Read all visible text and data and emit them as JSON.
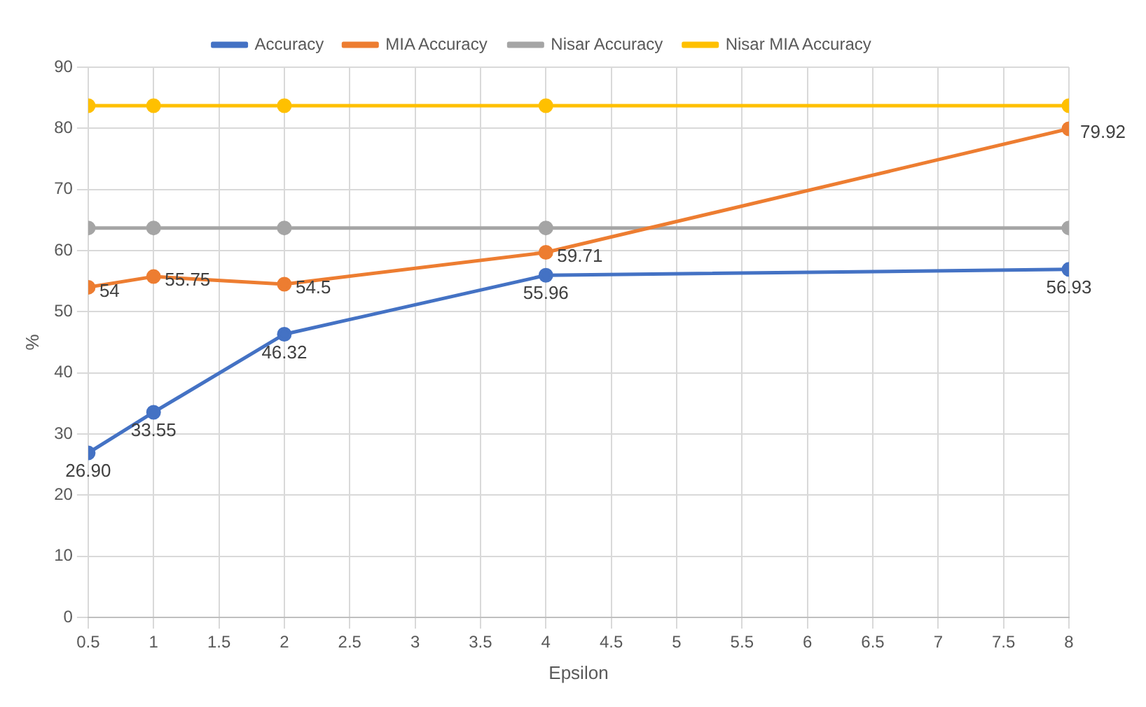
{
  "chart_data": {
    "type": "line",
    "xlabel": "Epsilon",
    "ylabel": "%",
    "x": [
      0.5,
      1,
      2,
      4,
      8
    ],
    "series": [
      {
        "name": "Accuracy",
        "color": "#4472c4",
        "values": [
          26.9,
          33.55,
          46.32,
          55.96,
          56.93
        ],
        "value_labels": [
          "26.90",
          "33.55",
          "46.32",
          "55.96",
          "56.93"
        ]
      },
      {
        "name": "MIA Accuracy",
        "color": "#ed7d31",
        "values": [
          54,
          55.75,
          54.5,
          59.71,
          79.92
        ],
        "value_labels": [
          "54",
          "55.75",
          "54.5",
          "59.71",
          "79.92"
        ]
      },
      {
        "name": "Nisar Accuracy",
        "color": "#a5a5a5",
        "values": [
          63.7,
          63.7,
          63.7,
          63.7,
          63.7
        ]
      },
      {
        "name": "Nisar MIA Accuracy",
        "color": "#ffc000",
        "values": [
          83.7,
          83.7,
          83.7,
          83.7,
          83.7
        ]
      }
    ],
    "xlim": [
      0.5,
      8
    ],
    "xticks": [
      0.5,
      1,
      1.5,
      2,
      2.5,
      3,
      3.5,
      4,
      4.5,
      5,
      5.5,
      6,
      6.5,
      7,
      7.5,
      8
    ],
    "ylim": [
      0,
      90
    ],
    "yticks": [
      0,
      10,
      20,
      30,
      40,
      50,
      60,
      70,
      80,
      90
    ],
    "grid": true,
    "legend": "top",
    "marker": "circle",
    "line_style": "solid"
  }
}
